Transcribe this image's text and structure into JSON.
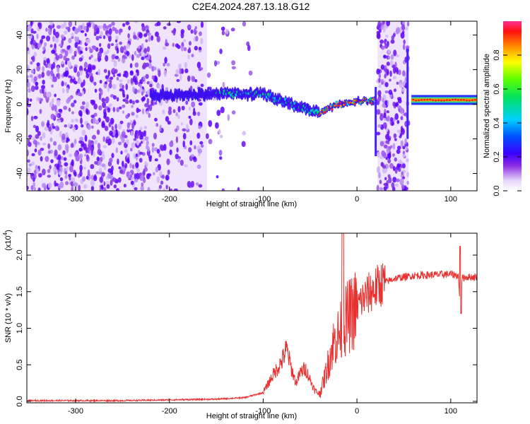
{
  "title": "C2E4.2024.287.13.18.G12",
  "chart_data": [
    {
      "type": "heatmap",
      "description_of_values": "spectrogram of normalized spectral amplitude vs height and frequency",
      "xlabel": "Height of straight line (km)",
      "ylabel": "Frequency (Hz)",
      "xlim": [
        -352,
        128
      ],
      "ylim": [
        -50,
        48
      ],
      "xticks": [
        -300,
        -200,
        -100,
        0,
        100
      ],
      "yticks": [
        -40,
        -20,
        0,
        20,
        40
      ],
      "colorbar": {
        "label": "Normalized spectral amplitude",
        "range": [
          0,
          1
        ],
        "ticks": [
          0.0,
          0.2,
          0.4,
          0.6,
          0.8
        ],
        "tick_labels": [
          "0.0",
          "0.2",
          "0.4",
          "0.6",
          "0.8"
        ]
      },
      "features": [
        {
          "name": "broadband noise",
          "x_range": [
            -352,
            -160
          ],
          "amplitude": 0.1
        },
        {
          "name": "signal track",
          "x": [
            -220,
            -150,
            -100,
            -60,
            -40,
            -20,
            0,
            20
          ],
          "freq": [
            5,
            6,
            6,
            -2,
            -5,
            0,
            2,
            2
          ]
        },
        {
          "name": "broadband burst",
          "x_range": [
            22,
            55
          ],
          "amplitude": 0.1
        },
        {
          "name": "strong carrier",
          "x": [
            60,
            80,
            100,
            120
          ],
          "freq": [
            3,
            3,
            2,
            2
          ],
          "amplitude": 0.9
        }
      ]
    },
    {
      "type": "line",
      "xlabel": "Height of straight line (km)",
      "ylabel": "SNR (10 * v/v)",
      "yscale_label": "(x10",
      "yscale_exponent": "4",
      "xlim": [
        -352,
        128
      ],
      "ylim": [
        -0.02,
        2.3
      ],
      "xticks": [
        -300,
        -200,
        -100,
        0,
        100
      ],
      "yticks": [
        0.0,
        0.5,
        1.0,
        1.5,
        2.0
      ],
      "ytick_labels": [
        "0.0",
        "0.5",
        "1.0",
        "1.5",
        "2.0"
      ],
      "line_color": "#e8302f",
      "series": [
        {
          "x": [
            -352,
            -300,
            -250,
            -200,
            -150,
            -120,
            -100,
            -90,
            -80,
            -75,
            -70,
            -65,
            -60,
            -55,
            -50,
            -45,
            -40,
            -35,
            -30,
            -25,
            -20,
            -15,
            -10,
            -5,
            0,
            5,
            10,
            15,
            20,
            25,
            30,
            40,
            50,
            60,
            80,
            100,
            108,
            110,
            112,
            115,
            128
          ],
          "values": [
            0.01,
            0.01,
            0.01,
            0.02,
            0.03,
            0.05,
            0.12,
            0.35,
            0.55,
            0.72,
            0.45,
            0.25,
            0.4,
            0.45,
            0.3,
            0.15,
            0.1,
            0.3,
            0.55,
            0.8,
            0.9,
            1.0,
            1.15,
            1.2,
            1.3,
            1.38,
            1.45,
            1.5,
            1.55,
            1.6,
            1.63,
            1.68,
            1.7,
            1.72,
            1.73,
            1.74,
            1.72,
            1.3,
            1.68,
            1.7,
            1.7
          ]
        }
      ]
    }
  ]
}
